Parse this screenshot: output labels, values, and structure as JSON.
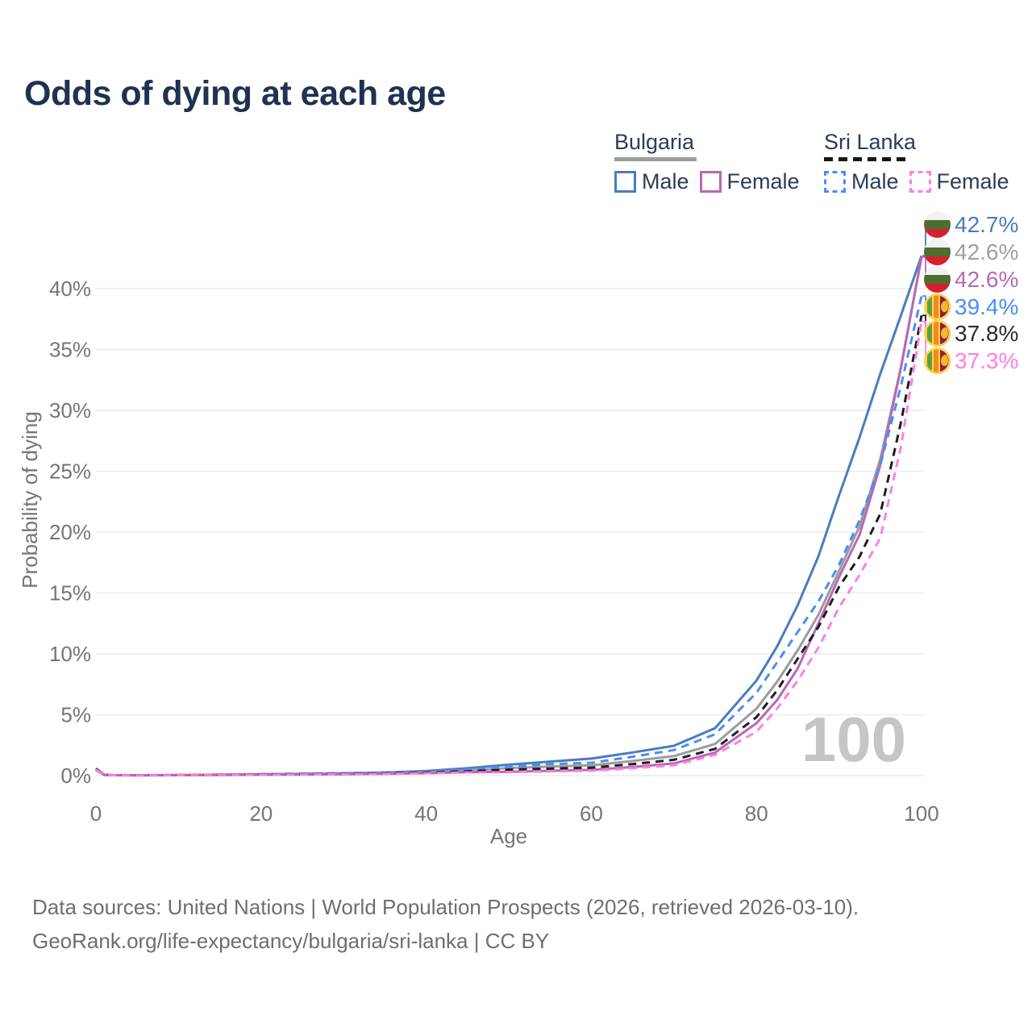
{
  "title": "Odds of dying at each age",
  "legend": {
    "groups": [
      {
        "name": "Bulgaria",
        "line_style": "solid",
        "items": [
          {
            "label": "Male",
            "color": "#4a7cbd"
          },
          {
            "label": "Female",
            "color": "#b769b4"
          }
        ]
      },
      {
        "name": "Sri Lanka",
        "line_style": "dashed",
        "items": [
          {
            "label": "Male",
            "color": "#4a8df6"
          },
          {
            "label": "Female",
            "color": "#ff7fe3"
          }
        ]
      }
    ]
  },
  "watermark": "100",
  "end_labels": [
    {
      "value": "42.7%",
      "color": "#4a7cbd",
      "flag": "bg"
    },
    {
      "value": "42.6%",
      "color": "#9e9e9e",
      "flag": "bg"
    },
    {
      "value": "42.6%",
      "color": "#b769b4",
      "flag": "bg"
    },
    {
      "value": "39.4%",
      "color": "#4a8df6",
      "flag": "lk"
    },
    {
      "value": "37.8%",
      "color": "#2b2b2b",
      "flag": "lk"
    },
    {
      "value": "37.3%",
      "color": "#ff7fe3",
      "flag": "lk"
    }
  ],
  "footer": {
    "line1": "Data sources: United Nations | World Population Prospects (2026, retrieved 2026-03-10).",
    "line2": "GeoRank.org/life-expectancy/bulgaria/sri-lanka | CC BY"
  },
  "chart_data": {
    "type": "line",
    "title": "Odds of dying at each age",
    "xlabel": "Age",
    "ylabel": "Probability of dying",
    "xlim": [
      0,
      100
    ],
    "ylim": [
      0,
      45
    ],
    "xticks": [
      0,
      20,
      40,
      60,
      80,
      100
    ],
    "yticks": [
      0,
      5,
      10,
      15,
      20,
      25,
      30,
      35,
      40
    ],
    "ytick_suffix": "%",
    "grid": "horizontal",
    "legend_position": "top-right",
    "x": [
      0,
      1,
      2,
      5,
      10,
      15,
      20,
      25,
      30,
      35,
      40,
      45,
      50,
      55,
      60,
      65,
      70,
      75,
      80,
      82.5,
      85,
      87.5,
      90,
      92.5,
      95,
      97.5,
      100
    ],
    "series": [
      {
        "name": "Bulgaria Male",
        "country": "Bulgaria",
        "sex": "Male",
        "color": "#4a7cbd",
        "dashed": false,
        "end_value_pct": 42.7,
        "values": [
          0.55,
          0.07,
          0.04,
          0.03,
          0.04,
          0.08,
          0.12,
          0.15,
          0.19,
          0.26,
          0.38,
          0.6,
          0.9,
          1.15,
          1.4,
          1.9,
          2.45,
          3.9,
          7.8,
          10.6,
          14.0,
          18.0,
          23.0,
          27.8,
          33.0,
          37.8,
          42.7
        ]
      },
      {
        "name": "Bulgaria Both sexes",
        "country": "Bulgaria",
        "sex": "Both",
        "color": "#9c9c9c",
        "dashed": false,
        "end_value_pct": 42.6,
        "values": [
          0.5,
          0.06,
          0.03,
          0.03,
          0.04,
          0.06,
          0.1,
          0.12,
          0.15,
          0.2,
          0.28,
          0.42,
          0.62,
          0.75,
          0.85,
          1.2,
          1.6,
          2.6,
          5.5,
          7.7,
          10.3,
          13.2,
          16.8,
          20.5,
          26.0,
          33.5,
          42.6
        ]
      },
      {
        "name": "Bulgaria Female",
        "country": "Bulgaria",
        "sex": "Female",
        "color": "#b769b4",
        "dashed": false,
        "end_value_pct": 42.6,
        "values": [
          0.45,
          0.05,
          0.03,
          0.02,
          0.03,
          0.05,
          0.07,
          0.09,
          0.11,
          0.15,
          0.2,
          0.28,
          0.32,
          0.4,
          0.47,
          0.7,
          1.0,
          1.9,
          4.3,
          6.2,
          8.8,
          12.5,
          16.3,
          19.8,
          25.5,
          33.5,
          42.6
        ]
      },
      {
        "name": "Sri Lanka Male",
        "country": "Sri Lanka",
        "sex": "Male",
        "color": "#4a8df6",
        "dashed": true,
        "end_value_pct": 39.4,
        "values": [
          0.6,
          0.07,
          0.04,
          0.03,
          0.04,
          0.07,
          0.12,
          0.15,
          0.19,
          0.25,
          0.35,
          0.5,
          0.75,
          0.95,
          1.05,
          1.55,
          2.1,
          3.4,
          6.8,
          9.3,
          11.8,
          14.3,
          17.3,
          21.0,
          25.5,
          32.0,
          39.4
        ]
      },
      {
        "name": "Sri Lanka Both sexes",
        "country": "Sri Lanka",
        "sex": "Both",
        "color": "#1f1f1f",
        "dashed": true,
        "end_value_pct": 37.8,
        "values": [
          0.55,
          0.06,
          0.03,
          0.03,
          0.04,
          0.06,
          0.09,
          0.11,
          0.14,
          0.18,
          0.25,
          0.35,
          0.5,
          0.58,
          0.65,
          0.95,
          1.3,
          2.2,
          4.8,
          7.0,
          9.6,
          12.2,
          15.5,
          18.0,
          21.5,
          29.0,
          37.8
        ]
      },
      {
        "name": "Sri Lanka Female",
        "country": "Sri Lanka",
        "sex": "Female",
        "color": "#ff7fe3",
        "dashed": true,
        "end_value_pct": 37.3,
        "values": [
          0.5,
          0.05,
          0.03,
          0.02,
          0.03,
          0.05,
          0.07,
          0.09,
          0.11,
          0.14,
          0.19,
          0.26,
          0.28,
          0.35,
          0.4,
          0.6,
          0.85,
          1.7,
          3.6,
          5.5,
          7.8,
          10.5,
          13.8,
          16.5,
          19.5,
          27.0,
          37.3
        ]
      }
    ]
  }
}
